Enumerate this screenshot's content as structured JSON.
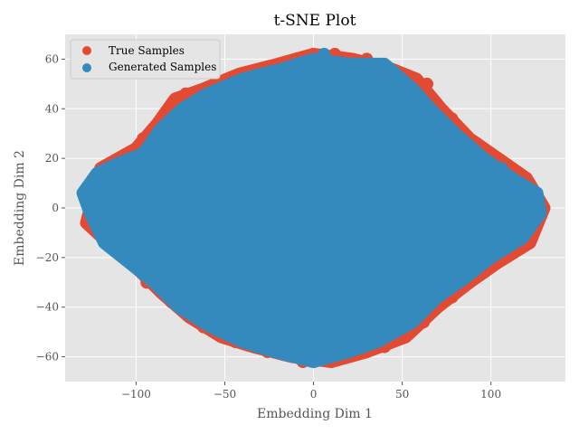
{
  "chart_data": {
    "type": "scatter",
    "title": "t-SNE Plot",
    "xlabel": "Embedding Dim 1",
    "ylabel": "Embedding Dim 2",
    "xlim": [
      -140,
      142
    ],
    "ylim": [
      -70,
      70
    ],
    "x_ticks": [
      -100,
      -50,
      0,
      50,
      100
    ],
    "y_ticks": [
      -60,
      -40,
      -20,
      0,
      20,
      40,
      60
    ],
    "x_tick_labels": [
      "−100",
      "−50",
      "0",
      "50",
      "100"
    ],
    "y_tick_labels": [
      "−60",
      "−40",
      "−20",
      "0",
      "20",
      "40",
      "60"
    ],
    "grid": true,
    "legend": {
      "position": "top-left"
    },
    "series": [
      {
        "name": "True Samples",
        "color": "#E24A33",
        "outline": [
          [
            -128,
            -6
          ],
          [
            -120,
            16
          ],
          [
            -100,
            24
          ],
          [
            -88,
            34
          ],
          [
            -78,
            44
          ],
          [
            -62,
            48
          ],
          [
            -42,
            54
          ],
          [
            -20,
            58
          ],
          [
            0,
            62
          ],
          [
            22,
            60
          ],
          [
            44,
            56
          ],
          [
            58,
            52
          ],
          [
            72,
            40
          ],
          [
            88,
            28
          ],
          [
            104,
            20
          ],
          [
            120,
            12
          ],
          [
            130,
            0
          ],
          [
            122,
            -14
          ],
          [
            104,
            -22
          ],
          [
            88,
            -30
          ],
          [
            70,
            -40
          ],
          [
            52,
            -52
          ],
          [
            30,
            -58
          ],
          [
            10,
            -62
          ],
          [
            -12,
            -60
          ],
          [
            -34,
            -56
          ],
          [
            -52,
            -52
          ],
          [
            -70,
            -44
          ],
          [
            -86,
            -34
          ],
          [
            -100,
            -24
          ],
          [
            -116,
            -14
          ]
        ],
        "scatter_points": [
          [
            -126,
            -4
          ],
          [
            -122,
            -8
          ],
          [
            -118,
            -6
          ],
          [
            -96,
            28
          ],
          [
            -72,
            46
          ],
          [
            -66,
            44
          ],
          [
            -48,
            52
          ],
          [
            -28,
            56
          ],
          [
            12,
            62
          ],
          [
            30,
            60
          ],
          [
            50,
            54
          ],
          [
            64,
            50
          ],
          [
            78,
            36
          ],
          [
            92,
            26
          ],
          [
            112,
            16
          ],
          [
            126,
            4
          ],
          [
            128,
            -2
          ],
          [
            118,
            -12
          ],
          [
            96,
            -26
          ],
          [
            78,
            -36
          ],
          [
            62,
            -46
          ],
          [
            40,
            -56
          ],
          [
            20,
            -60
          ],
          [
            -6,
            -62
          ],
          [
            -26,
            -58
          ],
          [
            -44,
            -54
          ],
          [
            -62,
            -48
          ],
          [
            -80,
            -38
          ],
          [
            -94,
            -30
          ],
          [
            -110,
            -18
          ],
          [
            -60,
            32
          ],
          [
            -30,
            14
          ],
          [
            12,
            10
          ],
          [
            40,
            24
          ],
          [
            70,
            8
          ],
          [
            -20,
            -30
          ],
          [
            50,
            -20
          ],
          [
            -80,
            10
          ],
          [
            20,
            -40
          ],
          [
            -40,
            -6
          ]
        ]
      },
      {
        "name": "Generated Samples",
        "color": "#348ABD",
        "outline": [
          [
            -130,
            6
          ],
          [
            -122,
            14
          ],
          [
            -110,
            18
          ],
          [
            -96,
            22
          ],
          [
            -86,
            32
          ],
          [
            -74,
            40
          ],
          [
            -60,
            46
          ],
          [
            -40,
            52
          ],
          [
            -18,
            56
          ],
          [
            0,
            60
          ],
          [
            20,
            58
          ],
          [
            40,
            58
          ],
          [
            56,
            48
          ],
          [
            66,
            40
          ],
          [
            80,
            30
          ],
          [
            96,
            20
          ],
          [
            112,
            12
          ],
          [
            126,
            6
          ],
          [
            128,
            -2
          ],
          [
            118,
            -12
          ],
          [
            100,
            -20
          ],
          [
            86,
            -28
          ],
          [
            70,
            -36
          ],
          [
            56,
            -46
          ],
          [
            36,
            -54
          ],
          [
            20,
            -58
          ],
          [
            0,
            -62
          ],
          [
            -22,
            -58
          ],
          [
            -40,
            -54
          ],
          [
            -58,
            -48
          ],
          [
            -76,
            -40
          ],
          [
            -90,
            -30
          ],
          [
            -104,
            -22
          ],
          [
            -118,
            -14
          ],
          [
            -126,
            -2
          ]
        ],
        "scatter_points": [
          [
            -128,
            4
          ],
          [
            -116,
            12
          ],
          [
            -100,
            16
          ],
          [
            -90,
            28
          ],
          [
            -70,
            38
          ],
          [
            -50,
            48
          ],
          [
            -30,
            54
          ],
          [
            -10,
            58
          ],
          [
            6,
            62
          ],
          [
            30,
            58
          ],
          [
            38,
            56
          ],
          [
            60,
            44
          ],
          [
            74,
            34
          ],
          [
            90,
            24
          ],
          [
            106,
            16
          ],
          [
            120,
            8
          ],
          [
            124,
            0
          ],
          [
            110,
            -12
          ],
          [
            94,
            -22
          ],
          [
            80,
            -30
          ],
          [
            64,
            -40
          ],
          [
            46,
            -50
          ],
          [
            28,
            -56
          ],
          [
            8,
            -60
          ],
          [
            -14,
            -58
          ],
          [
            -32,
            -56
          ],
          [
            -50,
            -50
          ],
          [
            -68,
            -42
          ],
          [
            -84,
            -32
          ],
          [
            -98,
            -24
          ],
          [
            -112,
            -14
          ],
          [
            -122,
            -4
          ]
        ]
      }
    ]
  }
}
